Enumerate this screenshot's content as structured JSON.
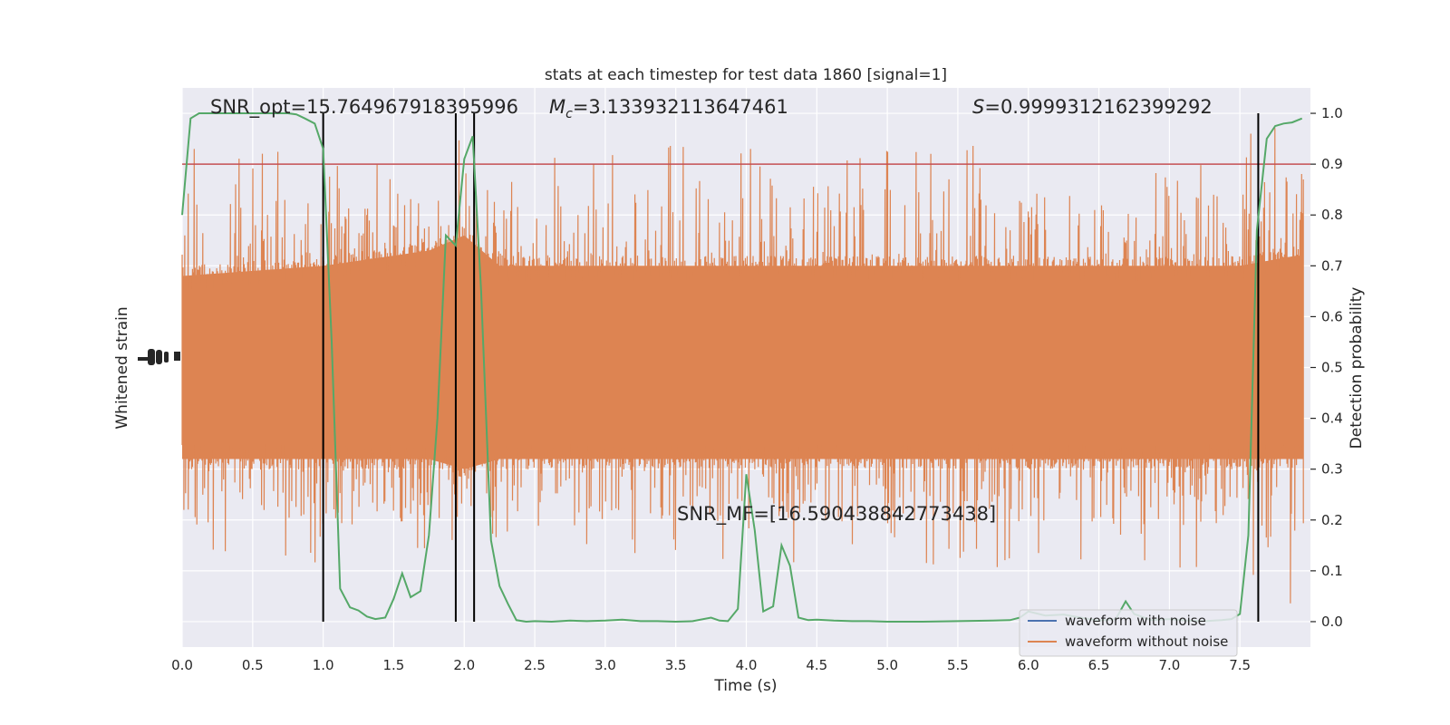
{
  "chart_data": {
    "type": "line",
    "title": "stats at each timestep for test data 1860 [signal=1]",
    "xlabel": "Time (s)",
    "ylabel_left": "Whitened strain",
    "ylabel_right": "Detection probability",
    "xlim": [
      0.0,
      8.0
    ],
    "ylim_right": [
      -0.05,
      1.05
    ],
    "x_ticks": [
      "0.0",
      "0.5",
      "1.0",
      "1.5",
      "2.0",
      "2.5",
      "3.0",
      "3.5",
      "4.0",
      "4.5",
      "5.0",
      "5.5",
      "6.0",
      "6.5",
      "7.0",
      "7.5"
    ],
    "y_ticks_right": [
      "0.0",
      "0.1",
      "0.2",
      "0.3",
      "0.4",
      "0.5",
      "0.6",
      "0.7",
      "0.8",
      "0.9",
      "1.0"
    ],
    "grid": true,
    "legend_position": "lower-right",
    "annotations": {
      "snr_opt": "SNR_opt=15.764967918395996",
      "mc_symbol": "M",
      "mc_sub": "c",
      "mc_value": "=3.133932113647461",
      "s_symbol": "S",
      "s_value": "=0.9999312162399292",
      "snr_mf": "SNR_MF=[16.590438842773438]"
    },
    "threshold": 0.9,
    "vertical_lines_x": [
      1.0,
      1.94,
      2.07,
      7.63
    ],
    "series": [
      {
        "name": "waveform with noise",
        "color": "#4c72b0"
      },
      {
        "name": "waveform without noise",
        "color": "#dd8452"
      }
    ],
    "detection_probability": {
      "color": "#55a868",
      "x": [
        0.0,
        0.06,
        0.12,
        0.19,
        0.25,
        0.31,
        0.37,
        0.44,
        0.5,
        0.56,
        0.62,
        0.69,
        0.75,
        0.81,
        0.87,
        0.94,
        1.0,
        1.06,
        1.12,
        1.19,
        1.25,
        1.31,
        1.37,
        1.44,
        1.5,
        1.56,
        1.62,
        1.69,
        1.75,
        1.81,
        1.87,
        1.94,
        2.0,
        2.06,
        2.12,
        2.19,
        2.25,
        2.31,
        2.37,
        2.44,
        2.5,
        2.62,
        2.75,
        2.87,
        3.0,
        3.12,
        3.25,
        3.37,
        3.5,
        3.62,
        3.75,
        3.81,
        3.87,
        3.94,
        4.0,
        4.06,
        4.12,
        4.19,
        4.25,
        4.31,
        4.37,
        4.44,
        4.5,
        4.62,
        4.75,
        4.87,
        5.0,
        5.25,
        5.5,
        5.75,
        5.87,
        5.94,
        6.0,
        6.12,
        6.25,
        6.37,
        6.5,
        6.62,
        6.69,
        6.75,
        6.87,
        7.0,
        7.12,
        7.25,
        7.37,
        7.44,
        7.5,
        7.56,
        7.62,
        7.69,
        7.75,
        7.81,
        7.87,
        7.94
      ],
      "y": [
        0.8,
        0.99,
        1.0,
        1.0,
        1.0,
        1.0,
        1.0,
        1.0,
        1.0,
        1.0,
        1.0,
        1.0,
        1.0,
        0.998,
        0.99,
        0.98,
        0.93,
        0.55,
        0.065,
        0.028,
        0.022,
        0.01,
        0.005,
        0.008,
        0.045,
        0.095,
        0.048,
        0.06,
        0.17,
        0.4,
        0.76,
        0.74,
        0.91,
        0.955,
        0.65,
        0.16,
        0.07,
        0.035,
        0.003,
        0.0,
        0.001,
        0.0,
        0.002,
        0.001,
        0.002,
        0.004,
        0.001,
        0.001,
        0.0,
        0.001,
        0.008,
        0.002,
        0.001,
        0.025,
        0.29,
        0.18,
        0.02,
        0.03,
        0.15,
        0.11,
        0.008,
        0.003,
        0.004,
        0.002,
        0.001,
        0.001,
        0.0,
        0.0,
        0.001,
        0.002,
        0.003,
        0.008,
        0.02,
        0.012,
        0.014,
        0.008,
        0.002,
        0.005,
        0.04,
        0.015,
        0.003,
        0.005,
        0.002,
        0.001,
        0.003,
        0.005,
        0.015,
        0.17,
        0.77,
        0.95,
        0.975,
        0.98,
        0.982,
        0.99
      ]
    },
    "noise_envelope": {
      "color": "#dd8452",
      "x": [
        0.0,
        1.0,
        1.75,
        2.0,
        2.25,
        4.0,
        6.0,
        7.5,
        7.9
      ],
      "y_typical_low": [
        0.3,
        0.3,
        0.3,
        0.28,
        0.3,
        0.3,
        0.3,
        0.3,
        0.3
      ],
      "y_typical_high": [
        0.7,
        0.72,
        0.75,
        0.78,
        0.72,
        0.72,
        0.72,
        0.72,
        0.74
      ],
      "y_spike_low": [
        0.1,
        0.1,
        0.08,
        0.18,
        0.15,
        0.12,
        0.1,
        0.1,
        0.0
      ],
      "y_spike_high": [
        0.93,
        0.93,
        0.93,
        0.95,
        0.9,
        0.98,
        0.95,
        0.97,
        1.0
      ]
    }
  }
}
